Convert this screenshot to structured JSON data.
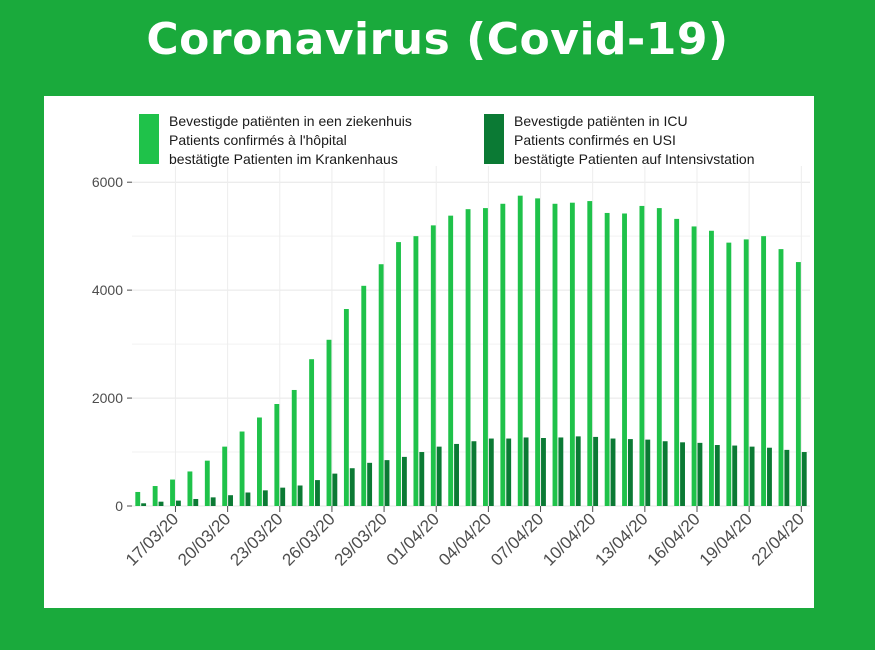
{
  "title": "Coronavirus (Covid-19)",
  "chart_data": {
    "type": "bar",
    "title": "",
    "xlabel": "",
    "ylabel": "",
    "ylim": [
      0,
      6300
    ],
    "yticks": [
      0,
      2000,
      4000,
      6000
    ],
    "grid": true,
    "legend_position": "top",
    "dates": [
      "15/03/20",
      "16/03/20",
      "17/03/20",
      "18/03/20",
      "19/03/20",
      "20/03/20",
      "21/03/20",
      "22/03/20",
      "23/03/20",
      "24/03/20",
      "25/03/20",
      "26/03/20",
      "27/03/20",
      "28/03/20",
      "29/03/20",
      "30/03/20",
      "31/03/20",
      "01/04/20",
      "02/04/20",
      "03/04/20",
      "04/04/20",
      "05/04/20",
      "06/04/20",
      "07/04/20",
      "08/04/20",
      "09/04/20",
      "10/04/20",
      "11/04/20",
      "12/04/20",
      "13/04/20",
      "14/04/20",
      "15/04/20",
      "16/04/20",
      "17/04/20",
      "18/04/20",
      "19/04/20",
      "20/04/20",
      "21/04/20",
      "22/04/20"
    ],
    "x_tick_labels": [
      "17/03/20",
      "20/03/20",
      "23/03/20",
      "26/03/20",
      "29/03/20",
      "01/04/20",
      "04/04/20",
      "07/04/20",
      "10/04/20",
      "13/04/20",
      "16/04/20",
      "19/04/20",
      "22/04/20"
    ],
    "series": [
      {
        "name": "Bevestigde patiënten in een ziekenhuis\nPatients confirmés à l'hôpital\nbestätigte Patienten im Krankenhaus",
        "color": "#1fc24a",
        "values": [
          260,
          370,
          490,
          640,
          840,
          1100,
          1380,
          1640,
          1890,
          2150,
          2720,
          3080,
          3650,
          4080,
          4480,
          4890,
          5000,
          5200,
          5380,
          5500,
          5520,
          5600,
          5750,
          5700,
          5600,
          5620,
          5650,
          5430,
          5420,
          5560,
          5520,
          5320,
          5180,
          5100,
          4880,
          4940,
          5000,
          4760,
          4520
        ]
      },
      {
        "name": "Bevestigde patiënten in ICU\nPatients confirmés en USI\nbestätigte Patienten auf Intensivstation",
        "color": "#0b7a34",
        "values": [
          50,
          80,
          100,
          130,
          160,
          200,
          250,
          290,
          340,
          380,
          480,
          600,
          700,
          800,
          850,
          910,
          1000,
          1100,
          1150,
          1200,
          1250,
          1250,
          1270,
          1260,
          1270,
          1290,
          1280,
          1250,
          1240,
          1230,
          1200,
          1180,
          1170,
          1130,
          1120,
          1100,
          1080,
          1040,
          1000
        ]
      }
    ]
  }
}
